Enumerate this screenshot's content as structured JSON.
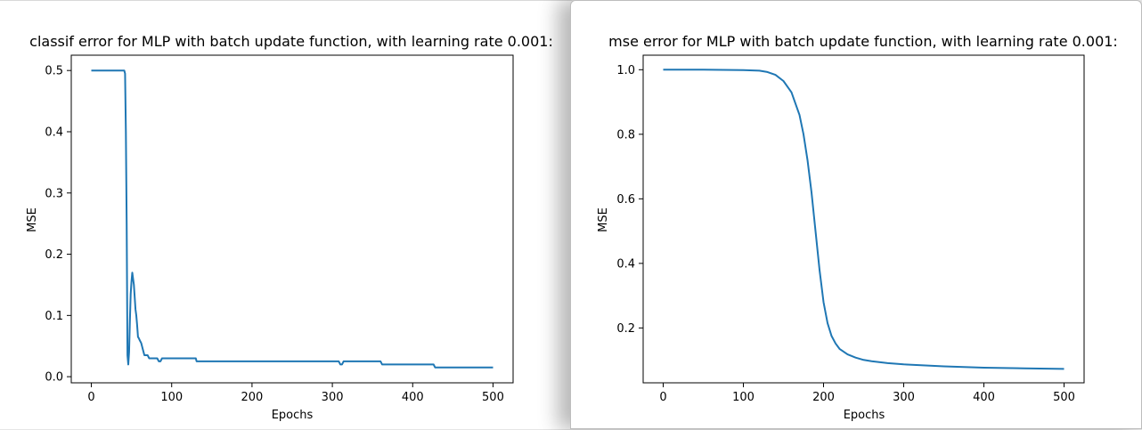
{
  "colors": {
    "series": "#1f77b4",
    "background": "#ffffff",
    "desktop": "#e6e6e6"
  },
  "chart_data": [
    {
      "type": "line",
      "title": "classif error for MLP with batch update function, with learning rate 0.001:",
      "xlabel": "Epochs",
      "ylabel": "MSE",
      "xlim": [
        -25,
        525
      ],
      "ylim": [
        -0.01,
        0.525
      ],
      "xticks": [
        0,
        100,
        200,
        300,
        400,
        500
      ],
      "yticks": [
        0.0,
        0.1,
        0.2,
        0.3,
        0.4,
        0.5
      ],
      "xtick_labels": [
        "0",
        "100",
        "200",
        "300",
        "400",
        "500"
      ],
      "ytick_labels": [
        "0.0",
        "0.1",
        "0.2",
        "0.3",
        "0.4",
        "0.5"
      ],
      "grid": false,
      "series": [
        {
          "x": [
            0,
            41,
            42,
            43,
            44,
            45,
            46,
            47,
            48,
            49,
            50,
            51,
            52,
            53,
            54,
            55,
            56,
            57,
            58,
            59,
            60,
            62,
            64,
            66,
            68,
            70,
            72,
            74,
            78,
            82,
            84,
            86,
            88,
            100,
            120,
            130,
            131,
            200,
            250,
            300,
            308,
            310,
            312,
            314,
            320,
            360,
            362,
            400,
            426,
            428,
            470,
            500
          ],
          "y": [
            0.5,
            0.5,
            0.495,
            0.4,
            0.25,
            0.035,
            0.02,
            0.04,
            0.09,
            0.135,
            0.155,
            0.17,
            0.16,
            0.15,
            0.13,
            0.11,
            0.1,
            0.085,
            0.065,
            0.063,
            0.06,
            0.055,
            0.045,
            0.035,
            0.035,
            0.035,
            0.03,
            0.03,
            0.03,
            0.03,
            0.025,
            0.025,
            0.03,
            0.03,
            0.03,
            0.03,
            0.025,
            0.025,
            0.025,
            0.025,
            0.025,
            0.02,
            0.02,
            0.025,
            0.025,
            0.025,
            0.02,
            0.02,
            0.02,
            0.015,
            0.015,
            0.015
          ]
        }
      ]
    },
    {
      "type": "line",
      "title": "mse error for MLP with batch update function, with learning rate 0.001:",
      "xlabel": "Epochs",
      "ylabel": "MSE",
      "xlim": [
        -25,
        525
      ],
      "ylim": [
        0.03,
        1.045
      ],
      "xticks": [
        0,
        100,
        200,
        300,
        400,
        500
      ],
      "yticks": [
        0.2,
        0.4,
        0.6,
        0.8,
        1.0
      ],
      "xtick_labels": [
        "0",
        "100",
        "200",
        "300",
        "400",
        "500"
      ],
      "ytick_labels": [
        "0.2",
        "0.4",
        "0.6",
        "0.8",
        "1.0"
      ],
      "grid": false,
      "series": [
        {
          "x": [
            0,
            50,
            100,
            120,
            130,
            140,
            150,
            160,
            170,
            175,
            180,
            185,
            190,
            195,
            200,
            205,
            210,
            215,
            220,
            230,
            240,
            250,
            260,
            280,
            300,
            350,
            400,
            450,
            500
          ],
          "y": [
            1.0,
            1.0,
            0.999,
            0.997,
            0.993,
            0.984,
            0.965,
            0.93,
            0.86,
            0.8,
            0.72,
            0.62,
            0.5,
            0.38,
            0.28,
            0.215,
            0.175,
            0.152,
            0.135,
            0.118,
            0.108,
            0.101,
            0.097,
            0.091,
            0.087,
            0.081,
            0.077,
            0.075,
            0.073
          ]
        }
      ]
    }
  ]
}
